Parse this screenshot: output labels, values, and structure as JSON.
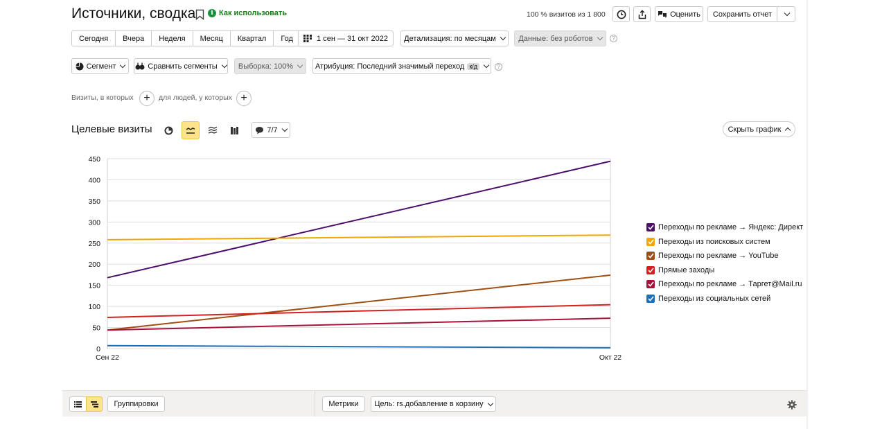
{
  "header": {
    "title": "Источники, сводка",
    "how_to_use": "Как использовать",
    "visits_note": "100 % визитов из 1 800",
    "rate_label": "Оценить",
    "save_report_label": "Сохранить отчет"
  },
  "period": {
    "buttons": [
      "Сегодня",
      "Вчера",
      "Неделя",
      "Месяц",
      "Квартал",
      "Год"
    ],
    "date_range": "1 сен — 31 окт 2022",
    "detail": "Детализация: по месяцам",
    "data_mode": "Данные: без роботов"
  },
  "filters": {
    "segment": "Сегмент",
    "compare": "Сравнить сегменты",
    "sample": "Выборка: 100%",
    "attribution": "Атрибуция: Последний значимый переход",
    "attribution_badge": "к/д"
  },
  "conditions": {
    "visits_where": "Визиты, в которых",
    "people_where": "для людей, у которых"
  },
  "chart_header": {
    "title": "Целевые визиты",
    "series_count": "7/7",
    "hide_chart": "Скрыть график"
  },
  "colors": {
    "accent_yellow": "#fde38a",
    "series": [
      "#4b0e6b",
      "#f0a800",
      "#a04f14",
      "#d42020",
      "#a8123a",
      "#1f6fb5"
    ]
  },
  "chart_data": {
    "type": "line",
    "title": "",
    "xlabel": "",
    "ylabel": "",
    "x": [
      "Сен 22",
      "Окт 22"
    ],
    "ylim": [
      0,
      450
    ],
    "yticks": [
      0,
      50,
      100,
      150,
      200,
      250,
      300,
      350,
      400,
      450
    ],
    "grid": true,
    "legend_position": "right",
    "series": [
      {
        "name": "Переходы по рекламе → Яндекс: Директ",
        "values": [
          168,
          444
        ],
        "color": "#4b0e6b"
      },
      {
        "name": "Переходы из поисковых систем",
        "values": [
          258,
          269
        ],
        "color": "#f0a800"
      },
      {
        "name": "Переходы по рекламе → YouTube",
        "values": [
          44,
          174
        ],
        "color": "#a04f14"
      },
      {
        "name": "Прямые заходы",
        "values": [
          74,
          104
        ],
        "color": "#d42020"
      },
      {
        "name": "Переходы по рекламе → Таргет@Mail.ru",
        "values": [
          44,
          72
        ],
        "color": "#a8123a"
      },
      {
        "name": "Переходы из социальных сетей",
        "values": [
          7,
          2
        ],
        "color": "#1f6fb5"
      }
    ]
  },
  "footer": {
    "groupings": "Группировки",
    "metrics": "Метрики",
    "goal": "Цель: rs.добавление в корзину"
  }
}
